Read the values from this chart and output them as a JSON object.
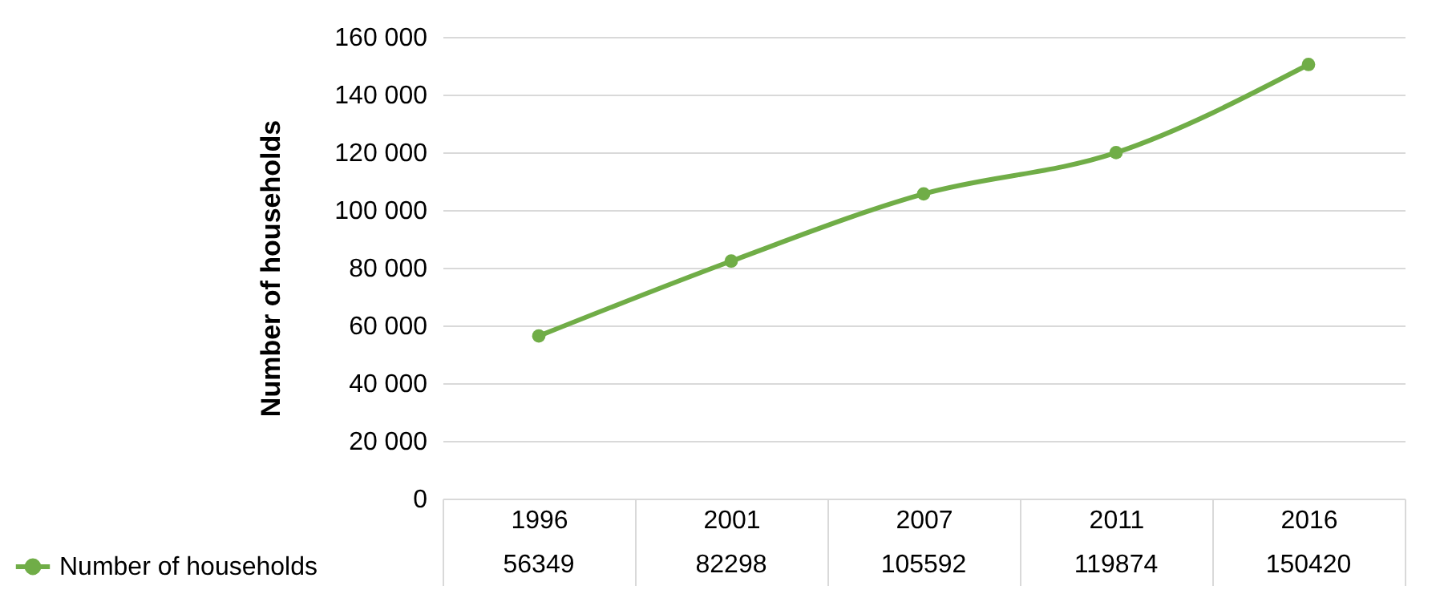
{
  "chart_data": {
    "type": "line",
    "ylabel": "Number of households",
    "categories": [
      "1996",
      "2001",
      "2007",
      "2011",
      "2016"
    ],
    "series": [
      {
        "name": "Number of households",
        "color": "#70ad47",
        "values": [
          56349,
          82298,
          105592,
          119874,
          150420
        ]
      }
    ],
    "ylim": [
      0,
      160000
    ],
    "yticks": [
      0,
      {
        "value": 20000,
        "label": "20 000"
      },
      {
        "value": 40000,
        "label": "40 000"
      },
      {
        "value": 60000,
        "label": "60 000"
      },
      {
        "value": 80000,
        "label": "80 000"
      },
      {
        "value": 100000,
        "label": "100 000"
      },
      {
        "value": 120000,
        "label": "120 000"
      },
      {
        "value": 140000,
        "label": "140 000"
      },
      {
        "value": 160000,
        "label": "160 000"
      }
    ],
    "grid": "y",
    "legend": "bottom left",
    "marker": "circle",
    "line_style": "solid",
    "data_labels": true
  }
}
